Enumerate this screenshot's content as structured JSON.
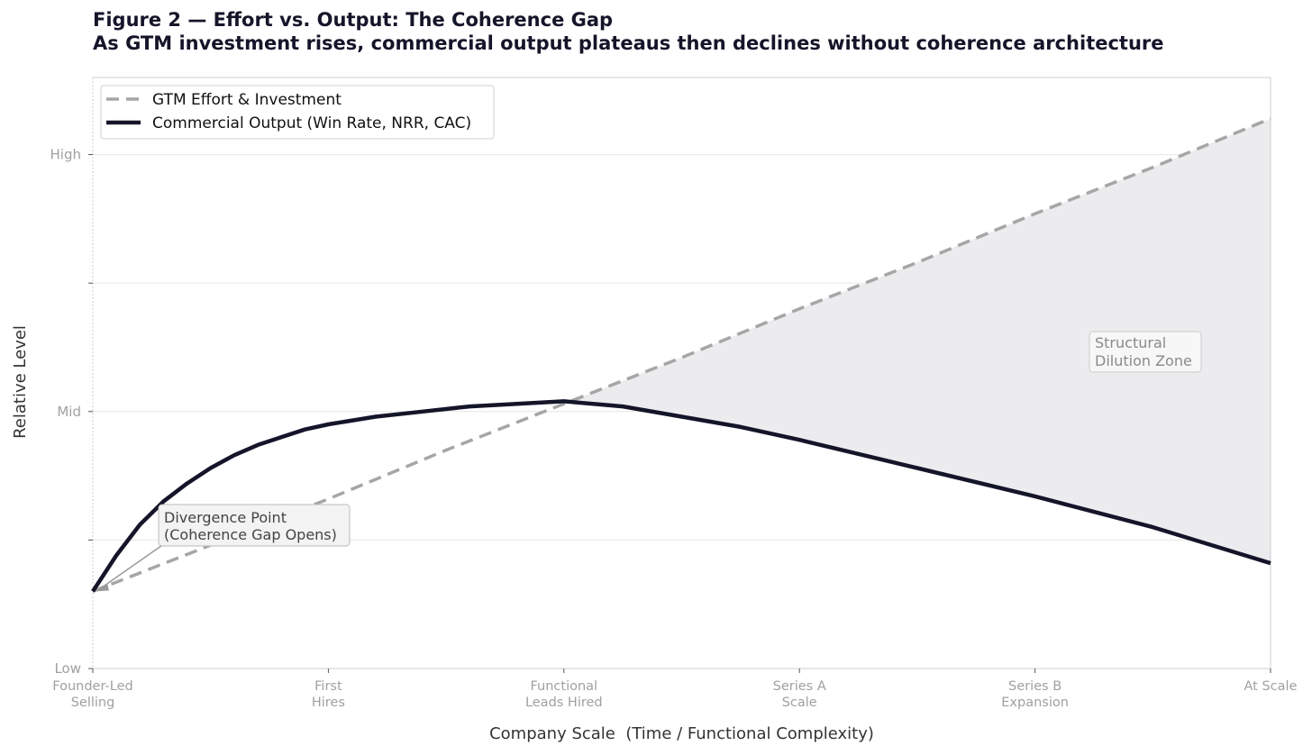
{
  "chart_data": {
    "type": "line",
    "title": "Figure 2 — Effort vs. Output: The Coherence Gap",
    "subtitle": "As GTM investment rises, commercial output plateaus then declines without coherence architecture",
    "xlabel": "Company Scale  (Time / Functional Complexity)",
    "ylabel": "Relative Level",
    "xlim": [
      0,
      5
    ],
    "ylim": [
      0,
      2.3
    ],
    "x_ticks": [
      {
        "value": 0,
        "lines": [
          "Founder-Led",
          "Selling"
        ]
      },
      {
        "value": 1,
        "lines": [
          "First",
          "Hires"
        ]
      },
      {
        "value": 2,
        "lines": [
          "Functional",
          "Leads Hired"
        ]
      },
      {
        "value": 3,
        "lines": [
          "Series A",
          "Scale"
        ]
      },
      {
        "value": 4,
        "lines": [
          "Series B",
          "Expansion"
        ]
      },
      {
        "value": 5,
        "lines": [
          "At Scale"
        ]
      }
    ],
    "y_ticks": [
      {
        "value": 0,
        "label": "Low"
      },
      {
        "value": 0.5,
        "label": ""
      },
      {
        "value": 1.0,
        "label": "Mid"
      },
      {
        "value": 1.5,
        "label": ""
      },
      {
        "value": 2.0,
        "label": "High"
      }
    ],
    "grid": true,
    "legend_position": "top-left",
    "series": [
      {
        "name": "GTM Effort & Investment",
        "style": "dashed",
        "color": "#a6a6a6",
        "x": [
          0,
          0.5,
          1,
          1.5,
          2,
          2.5,
          3,
          3.5,
          4,
          4.5,
          5
        ],
        "y": [
          0.3,
          0.48,
          0.66,
          0.85,
          1.03,
          1.21,
          1.4,
          1.58,
          1.77,
          1.95,
          2.14
        ]
      },
      {
        "name": "Commercial Output (Win Rate, NRR, CAC)",
        "style": "solid",
        "color": "#15152a",
        "x": [
          0,
          0.1,
          0.2,
          0.3,
          0.4,
          0.5,
          0.6,
          0.7,
          0.8,
          0.9,
          1.0,
          1.2,
          1.4,
          1.6,
          1.8,
          2.0,
          2.25,
          2.5,
          2.75,
          3.0,
          3.5,
          4.0,
          4.5,
          5.0
        ],
        "y": [
          0.3,
          0.44,
          0.56,
          0.65,
          0.72,
          0.78,
          0.83,
          0.87,
          0.9,
          0.93,
          0.95,
          0.98,
          1.0,
          1.02,
          1.03,
          1.04,
          1.02,
          0.98,
          0.94,
          0.89,
          0.78,
          0.67,
          0.55,
          0.41
        ]
      }
    ],
    "shaded_region": {
      "label": "Structural Dilution Zone",
      "from_x": 2.0,
      "to_x": 5,
      "between": "effort and output",
      "color": "#ececef"
    },
    "annotations": [
      {
        "lines": [
          "Divergence Point",
          "(Coherence Gap Opens)"
        ],
        "points_to": {
          "x": 0,
          "y": 0.3
        }
      },
      {
        "lines": [
          "Structural",
          "Dilution Zone"
        ],
        "near": {
          "x": 4.3,
          "y": 1.3
        }
      }
    ]
  }
}
